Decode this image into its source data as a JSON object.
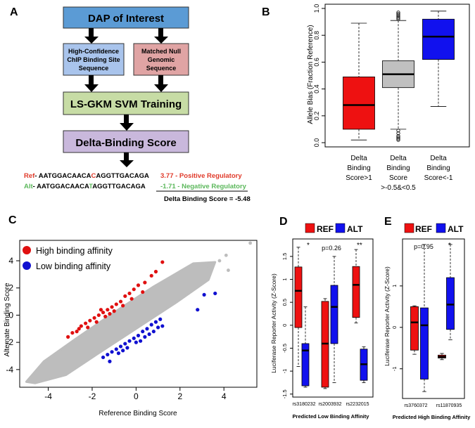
{
  "panels": {
    "a": {
      "letter": "A",
      "flow": {
        "top": "DAP of Interest",
        "left": [
          "High-Confidence",
          "ChIP Binding Site",
          "Sequence"
        ],
        "right": [
          "Matched Null",
          "Genomic",
          "Sequence"
        ],
        "train": "LS-GKM SVM Training",
        "score": "Delta-Binding Score"
      },
      "colors": {
        "top": "#5b9bd5",
        "left": "#a9c4ec",
        "right": "#e0a4a4",
        "train": "#c7dca5",
        "score": "#c9b8dc",
        "ref": "#e03a2a",
        "alt": "#5cb85c"
      },
      "seq": {
        "ref_label": "Ref",
        "ref_pre": "- AATGGACAACA",
        "ref_allele": "C",
        "ref_post": "AGGTTGACAGA",
        "ref_score": "3.77 - Positive Regulatory",
        "alt_label": "Alt",
        "alt_pre": "- AATGGACAACA",
        "alt_allele": "T",
        "alt_post": "AGGTTGACAGA",
        "alt_score": "-1.71 - Negative Regulatory",
        "delta": "Delta Binding Score = -5.48"
      }
    },
    "b": {
      "letter": "B",
      "ylabel": "Allele Bias (Fraction Reference)",
      "cat1": [
        "Delta",
        "Binding",
        "Score>1"
      ],
      "cat2": [
        "Delta",
        "Binding",
        "Score",
        ">-0.5&<0.5"
      ],
      "cat3": [
        "Delta",
        "Binding",
        "Score<-1"
      ]
    },
    "c": {
      "letter": "C",
      "xlabel": "Reference Binding Score",
      "ylabel": "Alternate Binding Score",
      "legend_high": "High binding affinity",
      "legend_low": "Low binding affinity"
    },
    "d": {
      "letter": "D",
      "legend_ref": "REF",
      "legend_alt": "ALT",
      "ylabel": "Luciferase Reporter Activity (Z-Score)",
      "xlabel": "Predicted Low Binding Affinity",
      "ann1": "*",
      "ann2": "p=0.26",
      "ann3": "**"
    },
    "e": {
      "letter": "E",
      "legend_ref": "REF",
      "legend_alt": "ALT",
      "ylabel": "Luciferase Reporter Activity (Z-Score)",
      "xlabel": "Predicted High Binding Affinity",
      "ann1": "p=0.95",
      "ann2": "*"
    }
  },
  "chart_data": [
    {
      "type": "box",
      "panel": "B",
      "categories": [
        "Delta Binding Score>1",
        "Delta Binding Score >-0.5&<0.5",
        "Delta Binding Score<-1"
      ],
      "colors": [
        "#ee1111",
        "#c0c0c0",
        "#1111ee"
      ],
      "boxes": [
        {
          "whisker_low": 0.02,
          "q1": 0.1,
          "median": 0.28,
          "q3": 0.49,
          "whisker_high": 0.89,
          "outliers": []
        },
        {
          "whisker_low": 0.1,
          "q1": 0.41,
          "median": 0.51,
          "q3": 0.61,
          "whisker_high": 0.91,
          "outliers": [
            0.92,
            0.93,
            0.94,
            0.95,
            0.96,
            0.97,
            0.09,
            0.07,
            0.05,
            0.04,
            0.03,
            0.02
          ]
        },
        {
          "whisker_low": 0.27,
          "q1": 0.62,
          "median": 0.79,
          "q3": 0.92,
          "whisker_high": 0.98,
          "outliers": []
        }
      ],
      "ylim": [
        0,
        1
      ],
      "yticks": [
        "0.0",
        "0.2",
        "0.4",
        "0.6",
        "0.8",
        "1.0"
      ]
    },
    {
      "type": "scatter",
      "panel": "C",
      "xlim": [
        -5.3,
        5.5
      ],
      "ylim": [
        -5.3,
        5.5
      ],
      "xticks": [
        "-4",
        "-2",
        "0",
        "2",
        "4"
      ],
      "yticks": [
        "-4",
        "-2",
        "0",
        "2",
        "4"
      ],
      "series": [
        {
          "name": "High binding affinity",
          "color": "#e01010",
          "points": [
            [
              -3.1,
              -1.6
            ],
            [
              -2.9,
              -1.3
            ],
            [
              -2.7,
              -1.2
            ],
            [
              -2.5,
              -0.8
            ],
            [
              -2.3,
              -0.6
            ],
            [
              -2.1,
              -0.4
            ],
            [
              -1.9,
              -0.2
            ],
            [
              -1.7,
              0.0
            ],
            [
              -1.5,
              0.2
            ],
            [
              -1.3,
              0.4
            ],
            [
              -1.1,
              0.6
            ],
            [
              -0.9,
              0.8
            ],
            [
              -0.7,
              1.0
            ],
            [
              -0.5,
              1.4
            ],
            [
              -0.3,
              1.6
            ],
            [
              -0.1,
              1.9
            ],
            [
              0.1,
              2.2
            ],
            [
              0.4,
              2.4
            ],
            [
              0.7,
              2.9
            ],
            [
              0.9,
              3.2
            ],
            [
              1.2,
              3.9
            ],
            [
              -2.2,
              -0.9
            ],
            [
              -1.8,
              -0.5
            ],
            [
              -1.4,
              -0.1
            ],
            [
              -1.0,
              0.3
            ],
            [
              -0.6,
              0.7
            ],
            [
              -0.2,
              1.2
            ],
            [
              0.3,
              1.7
            ],
            [
              -1.6,
              0.4
            ],
            [
              -1.2,
              0.1
            ],
            [
              -2.6,
              -1.0
            ]
          ]
        },
        {
          "name": "Low binding affinity",
          "color": "#1010d0",
          "points": [
            [
              -1.5,
              -3.1
            ],
            [
              -1.3,
              -2.9
            ],
            [
              -1.1,
              -2.7
            ],
            [
              -0.9,
              -2.5
            ],
            [
              -0.7,
              -2.3
            ],
            [
              -0.5,
              -2.1
            ],
            [
              -0.3,
              -1.9
            ],
            [
              -0.1,
              -1.7
            ],
            [
              0.1,
              -1.5
            ],
            [
              0.3,
              -1.2
            ],
            [
              0.5,
              -1.0
            ],
            [
              0.7,
              -0.7
            ],
            [
              0.9,
              -0.5
            ],
            [
              1.1,
              -0.3
            ],
            [
              -1.2,
              -3.4
            ],
            [
              -0.8,
              -2.8
            ],
            [
              -0.4,
              -2.4
            ],
            [
              0.0,
              -2.0
            ],
            [
              0.4,
              -1.6
            ],
            [
              0.8,
              -1.2
            ],
            [
              1.2,
              -0.8
            ],
            [
              2.8,
              0.4
            ],
            [
              3.1,
              1.5
            ],
            [
              3.6,
              1.6
            ],
            [
              -0.6,
              -2.6
            ],
            [
              0.2,
              -1.9
            ],
            [
              0.6,
              -1.4
            ],
            [
              1.0,
              -0.9
            ]
          ]
        }
      ]
    },
    {
      "type": "box",
      "panel": "D",
      "categories": [
        "rs3180232",
        "rs2003932",
        "rs2232015"
      ],
      "series_names": [
        "REF",
        "ALT"
      ],
      "colors": [
        "#ee1111",
        "#1111ee"
      ],
      "ylim": [
        -1.55,
        1.85
      ],
      "yticks": [
        "-1.5",
        "-1",
        "-0.5",
        "0",
        "0.5",
        "1",
        "1.5"
      ],
      "boxes": [
        {
          "category": 0,
          "series": 0,
          "whisker_low": -0.9,
          "q1": -0.05,
          "median": 0.75,
          "q3": 1.27,
          "whisker_high": 1.7
        },
        {
          "category": 0,
          "series": 1,
          "whisker_low": -1.35,
          "q1": -1.32,
          "median": -0.55,
          "q3": -0.4,
          "whisker_high": 0.4
        },
        {
          "category": 1,
          "series": 0,
          "whisker_low": -1.38,
          "q1": -1.35,
          "median": -0.4,
          "q3": 0.52,
          "whisker_high": 0.58
        },
        {
          "category": 1,
          "series": 1,
          "whisker_low": -1.25,
          "q1": -0.4,
          "median": 0.4,
          "q3": 0.87,
          "whisker_high": 1.5
        },
        {
          "category": 2,
          "series": 0,
          "whisker_low": 0.05,
          "q1": 0.17,
          "median": 0.88,
          "q3": 1.28,
          "whisker_high": 1.65
        },
        {
          "category": 2,
          "series": 1,
          "whisker_low": -1.25,
          "q1": -1.2,
          "median": -0.85,
          "q3": -0.52,
          "whisker_high": -0.47
        }
      ]
    },
    {
      "type": "box",
      "panel": "E",
      "categories": [
        "rs3760372",
        "rs11870935"
      ],
      "series_names": [
        "REF",
        "ALT"
      ],
      "colors": [
        "#ee1111",
        "#1111ee"
      ],
      "ylim": [
        -1.7,
        2.1
      ],
      "yticks": [
        "-1",
        "0",
        "1"
      ],
      "boxes": [
        {
          "category": 0,
          "series": 0,
          "whisker_low": -0.65,
          "q1": -0.55,
          "median": 0.12,
          "q3": 0.5,
          "whisker_high": 0.52
        },
        {
          "category": 0,
          "series": 1,
          "whisker_low": -1.55,
          "q1": -1.25,
          "median": 0.05,
          "q3": 0.47,
          "whisker_high": 2.0
        },
        {
          "category": 1,
          "series": 0,
          "whisker_low": -0.78,
          "q1": -0.74,
          "median": -0.71,
          "q3": -0.67,
          "whisker_high": -0.63
        },
        {
          "category": 1,
          "series": 1,
          "whisker_low": -0.3,
          "q1": -0.05,
          "median": 0.55,
          "q3": 1.2,
          "whisker_high": 2.0
        }
      ]
    }
  ]
}
